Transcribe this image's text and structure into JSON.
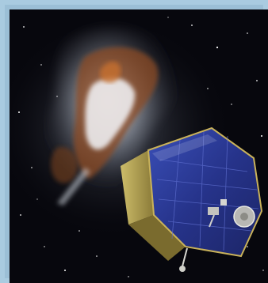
{
  "image": {
    "subject": "spacecraft-near-comet",
    "colors": {
      "frame": "#9bbfd6",
      "space": "#07070d",
      "nebula_glow": "#e7ecf2",
      "nebula_dust": "#8b4a22",
      "panel_blue": "#2c3d9e",
      "panel_edge": "#c9b25a"
    }
  }
}
